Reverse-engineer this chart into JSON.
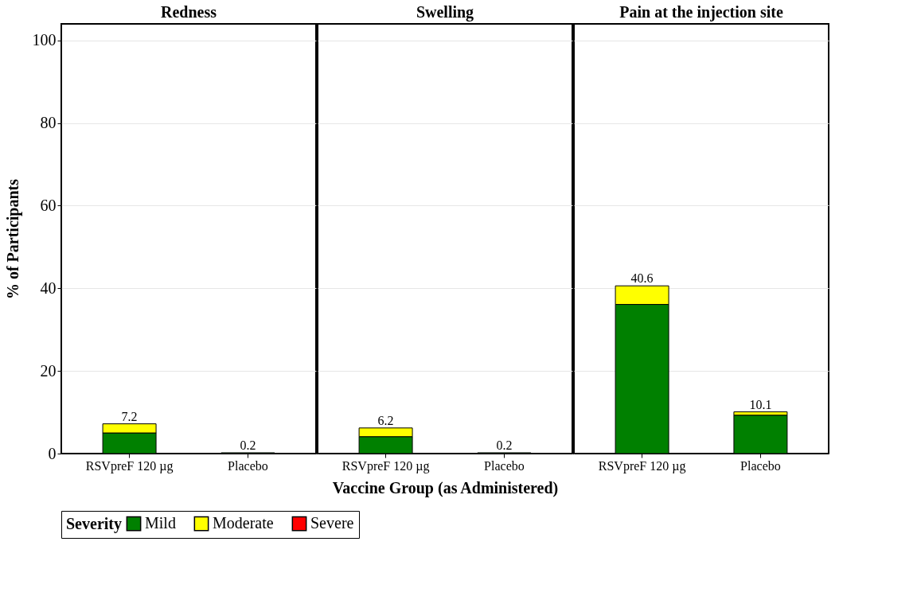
{
  "chart_data": [
    {
      "type": "bar",
      "title": "Redness",
      "ylabel": "% of Participants",
      "categories": [
        "RSVpreF 120 µg",
        "Placebo"
      ],
      "stacked": true,
      "series": [
        {
          "name": "Mild",
          "color": "#008000",
          "values": [
            5.0,
            0.2
          ]
        },
        {
          "name": "Moderate",
          "color": "#ffff00",
          "values": [
            2.2,
            0
          ]
        },
        {
          "name": "Severe",
          "color": "#ff0000",
          "values": [
            0,
            0
          ]
        }
      ],
      "totals": [
        "7.2",
        "0.2"
      ],
      "ylim": [
        0,
        104
      ],
      "yticks": [
        0,
        20,
        40,
        60,
        80,
        100
      ],
      "grid": "y",
      "legend": "bottom",
      "legend_title": "Severity"
    },
    {
      "type": "bar",
      "title": "Swelling",
      "xlabel": "Vaccine Group (as Administered)",
      "categories": [
        "RSVpreF 120 µg",
        "Placebo"
      ],
      "stacked": true,
      "series": [
        {
          "color": "#008000",
          "values": [
            4.1,
            0.2
          ]
        },
        {
          "color": "#ffff00",
          "values": [
            2.1,
            0
          ]
        },
        {
          "color": "#ff0000",
          "values": [
            0,
            0
          ]
        }
      ],
      "totals": [
        "6.2",
        "0.2"
      ],
      "ylim": [
        0,
        104
      ],
      "yticks": [
        0,
        20,
        40,
        60,
        80,
        100
      ],
      "grid": "y",
      "tick_labels": "x"
    },
    {
      "type": "bar",
      "title": "Pain at the injection site",
      "categories": [
        "RSVpreF 120 µg",
        "Placebo"
      ],
      "stacked": true,
      "series": [
        {
          "color": "#008000",
          "values": [
            36.1,
            9.3
          ]
        },
        {
          "color": "#ffff00",
          "values": [
            4.5,
            0.8
          ]
        },
        {
          "color": "#ff0000",
          "values": [
            0,
            0
          ]
        }
      ],
      "totals": [
        "40.6",
        "10.1"
      ],
      "ylim": [
        0,
        104
      ],
      "yticks": [
        0,
        20,
        40,
        60,
        80,
        100
      ],
      "grid": "y",
      "tick_labels": "x"
    }
  ]
}
